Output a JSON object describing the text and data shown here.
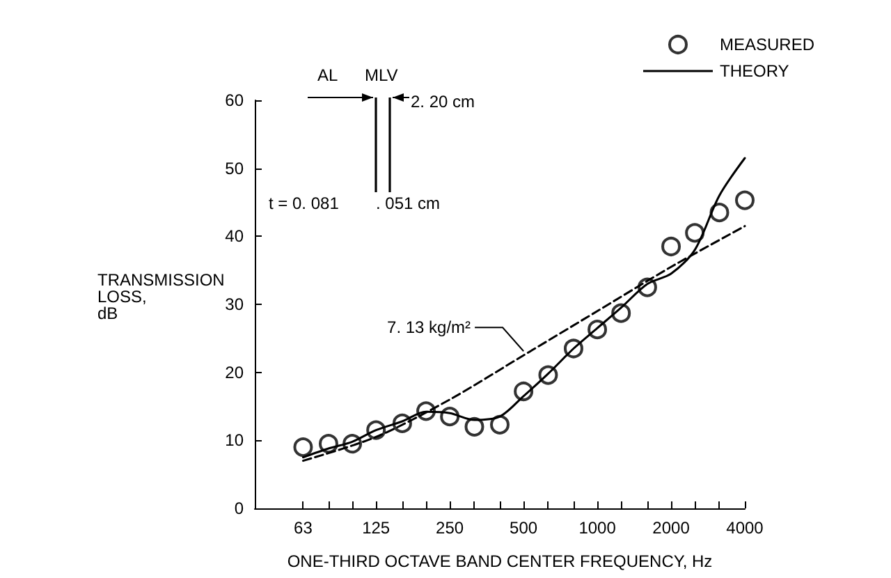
{
  "chart_data": {
    "type": "line",
    "xlabel": "ONE-THIRD OCTAVE BAND CENTER FREQUENCY, Hz",
    "ylabel": "TRANSMISSION\nLOSS,\ndB",
    "log": "x",
    "xlim": [
      40,
      4000
    ],
    "xticks": [
      63,
      {
        "value": 80,
        "label": null
      },
      {
        "value": 100,
        "label": null
      },
      125,
      {
        "value": 160,
        "label": null
      },
      {
        "value": 200,
        "label": null
      },
      250,
      {
        "value": 315,
        "label": null
      },
      {
        "value": 400,
        "label": null
      },
      500,
      {
        "value": 630,
        "label": null
      },
      {
        "value": 800,
        "label": null
      },
      1000,
      {
        "value": 1250,
        "label": null
      },
      {
        "value": 1600,
        "label": null
      },
      2000,
      {
        "value": 2500,
        "label": null
      },
      {
        "value": 3150,
        "label": null
      },
      4000
    ],
    "ylim": [
      0,
      60
    ],
    "yticks": [
      0,
      10,
      20,
      30,
      40,
      50,
      60
    ],
    "grid": false,
    "legend": "top right",
    "series": [
      {
        "name": "MEASURED",
        "type": "scatter",
        "marker": "circle",
        "color": "#000000",
        "x": [
          63,
          80,
          100,
          125,
          160,
          200,
          250,
          315,
          400,
          500,
          630,
          800,
          1000,
          1250,
          1600,
          2000,
          2500,
          3150,
          4000
        ],
        "values": [
          9,
          9.5,
          9.5,
          11.5,
          12.5,
          14.3,
          13.5,
          12,
          12.3,
          17.2,
          19.6,
          23.5,
          26.3,
          28.7,
          32.5,
          38.5,
          40.5,
          43.5,
          45.3
        ]
      },
      {
        "name": "THEORY",
        "marker": "none",
        "line_style": "solid",
        "color": "#000000",
        "x": [
          63,
          80,
          100,
          125,
          160,
          200,
          250,
          315,
          400,
          500,
          630,
          800,
          1000,
          1250,
          1600,
          2000,
          2500,
          3150,
          4000
        ],
        "values": [
          7.5,
          8.8,
          9.8,
          11.5,
          12.8,
          14.2,
          14,
          13,
          13.5,
          16.5,
          19.8,
          23.5,
          26.5,
          29.5,
          33,
          34.5,
          38,
          46,
          51.5
        ]
      },
      {
        "marker": "none",
        "line_style": "dashed",
        "color": "#000000",
        "x": [
          63,
          125,
          250,
          500,
          1000,
          2000,
          4000
        ],
        "values": [
          7,
          10.5,
          16,
          22.5,
          29,
          35.5,
          41.5
        ]
      }
    ],
    "annotations": [
      {
        "text": "7. 13 kg/m²",
        "x": 500,
        "y": 22.5
      },
      "AL",
      "MLV",
      "2. 20 cm",
      "t = 0. 081",
      ". 051 cm"
    ]
  }
}
